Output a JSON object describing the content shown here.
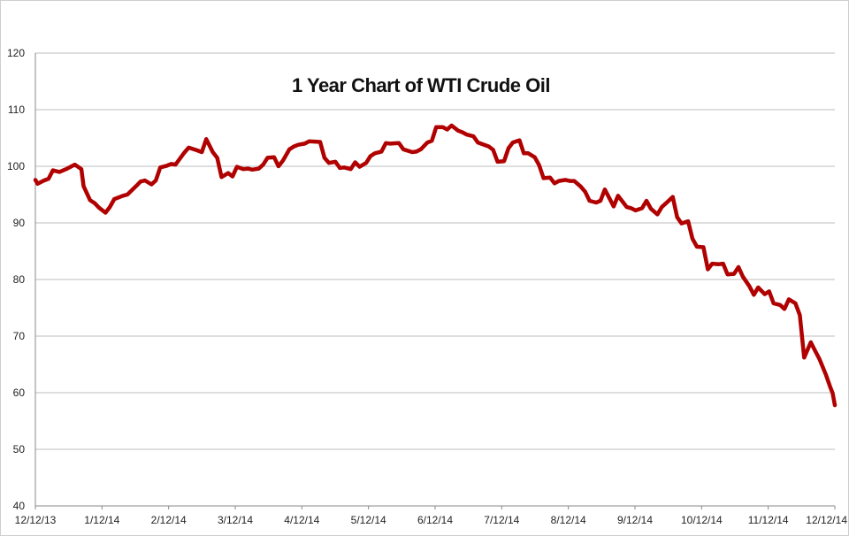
{
  "chart_data": {
    "type": "line",
    "title": "1 Year Chart of WTI Crude Oil",
    "xlabel": "",
    "ylabel": "",
    "ylim": [
      40,
      120
    ],
    "yticks": [
      40,
      50,
      60,
      70,
      80,
      90,
      100,
      110,
      120
    ],
    "x_tick_labels": [
      "12/12/13",
      "1/12/14",
      "2/12/14",
      "3/12/14",
      "4/12/14",
      "5/12/14",
      "6/12/14",
      "7/12/14",
      "8/12/14",
      "9/12/14",
      "10/12/14",
      "11/12/14",
      "12/12/14"
    ],
    "grid": "horizontal",
    "legend": "none",
    "line_color": "#b00000",
    "series": [
      {
        "x": [
          "2013-12-12",
          "2013-12-13",
          "2013-12-16",
          "2013-12-18",
          "2013-12-20",
          "2013-12-23",
          "2013-12-26",
          "2013-12-30",
          "2014-01-02",
          "2014-01-03",
          "2014-01-06",
          "2014-01-08",
          "2014-01-10",
          "2014-01-13",
          "2014-01-15",
          "2014-01-17",
          "2014-01-21",
          "2014-01-23",
          "2014-01-27",
          "2014-01-29",
          "2014-01-31",
          "2014-02-03",
          "2014-02-05",
          "2014-02-07",
          "2014-02-10",
          "2014-02-12",
          "2014-02-14",
          "2014-02-18",
          "2014-02-20",
          "2014-02-24",
          "2014-02-26",
          "2014-02-28",
          "2014-03-03",
          "2014-03-05",
          "2014-03-07",
          "2014-03-10",
          "2014-03-12",
          "2014-03-14",
          "2014-03-17",
          "2014-03-19",
          "2014-03-21",
          "2014-03-24",
          "2014-03-26",
          "2014-03-28",
          "2014-03-31",
          "2014-04-02",
          "2014-04-04",
          "2014-04-07",
          "2014-04-09",
          "2014-04-11",
          "2014-04-14",
          "2014-04-16",
          "2014-04-21",
          "2014-04-23",
          "2014-04-25",
          "2014-04-28",
          "2014-04-30",
          "2014-05-02",
          "2014-05-05",
          "2014-05-07",
          "2014-05-09",
          "2014-05-12",
          "2014-05-14",
          "2014-05-16",
          "2014-05-19",
          "2014-05-21",
          "2014-05-23",
          "2014-05-27",
          "2014-05-29",
          "2014-06-02",
          "2014-06-04",
          "2014-06-06",
          "2014-06-09",
          "2014-06-11",
          "2014-06-13",
          "2014-06-16",
          "2014-06-18",
          "2014-06-20",
          "2014-06-23",
          "2014-06-25",
          "2014-06-27",
          "2014-06-30",
          "2014-07-02",
          "2014-07-07",
          "2014-07-09",
          "2014-07-11",
          "2014-07-14",
          "2014-07-16",
          "2014-07-18",
          "2014-07-21",
          "2014-07-23",
          "2014-07-25",
          "2014-07-28",
          "2014-07-30",
          "2014-08-01",
          "2014-08-04",
          "2014-08-06",
          "2014-08-08",
          "2014-08-11",
          "2014-08-13",
          "2014-08-15",
          "2014-08-18",
          "2014-08-20",
          "2014-08-22",
          "2014-08-25",
          "2014-08-27",
          "2014-08-29",
          "2014-09-02",
          "2014-09-04",
          "2014-09-08",
          "2014-09-10",
          "2014-09-12",
          "2014-09-15",
          "2014-09-17",
          "2014-09-19",
          "2014-09-22",
          "2014-09-24",
          "2014-09-26",
          "2014-09-29",
          "2014-10-01",
          "2014-10-03",
          "2014-10-06",
          "2014-10-08",
          "2014-10-10",
          "2014-10-13",
          "2014-10-15",
          "2014-10-17",
          "2014-10-20",
          "2014-10-22",
          "2014-10-24",
          "2014-10-27",
          "2014-10-29",
          "2014-10-31",
          "2014-11-03",
          "2014-11-05",
          "2014-11-07",
          "2014-11-10",
          "2014-11-12",
          "2014-11-14",
          "2014-11-17",
          "2014-11-19",
          "2014-11-21",
          "2014-11-24",
          "2014-11-26",
          "2014-11-28",
          "2014-12-01",
          "2014-12-03",
          "2014-12-05",
          "2014-12-08",
          "2014-12-10",
          "2014-12-11",
          "2014-12-12"
        ],
        "values": [
          97.6,
          96.9,
          97.5,
          97.8,
          99.3,
          99.0,
          99.5,
          100.3,
          99.5,
          96.5,
          94.0,
          93.5,
          92.7,
          91.8,
          92.8,
          94.2,
          94.8,
          95.0,
          96.5,
          97.3,
          97.5,
          96.8,
          97.5,
          99.8,
          100.1,
          100.4,
          100.3,
          102.4,
          103.3,
          102.8,
          102.5,
          104.8,
          102.5,
          101.5,
          98.1,
          98.8,
          98.2,
          99.9,
          99.5,
          99.6,
          99.4,
          99.6,
          100.3,
          101.5,
          101.6,
          100.0,
          101.0,
          103.0,
          103.5,
          103.8,
          104.0,
          104.4,
          104.3,
          101.5,
          100.6,
          100.8,
          99.7,
          99.8,
          99.5,
          100.7,
          99.9,
          100.6,
          101.8,
          102.3,
          102.6,
          104.1,
          104.0,
          104.1,
          103.0,
          102.5,
          102.6,
          103.0,
          104.2,
          104.5,
          106.9,
          106.9,
          106.5,
          107.2,
          106.3,
          106.0,
          105.6,
          105.3,
          104.2,
          103.5,
          102.9,
          100.8,
          100.9,
          103.2,
          104.2,
          104.6,
          102.3,
          102.3,
          101.6,
          100.2,
          97.9,
          98.0,
          97.0,
          97.4,
          97.6,
          97.4,
          97.4,
          96.4,
          95.5,
          93.9,
          93.6,
          93.9,
          95.9,
          92.9,
          94.8,
          92.8,
          92.6,
          92.2,
          92.6,
          93.9,
          92.5,
          91.5,
          92.8,
          93.5,
          94.6,
          91.0,
          89.9,
          90.3,
          87.2,
          85.8,
          85.7,
          81.8,
          82.8,
          82.7,
          82.8,
          80.9,
          81.0,
          82.2,
          80.5,
          78.8,
          77.3,
          78.6,
          77.4,
          77.9,
          75.8,
          75.5,
          74.8,
          76.5,
          75.8,
          73.7,
          66.2,
          68.9,
          67.4,
          65.9,
          63.1,
          60.9,
          59.9,
          57.8
        ]
      }
    ]
  }
}
